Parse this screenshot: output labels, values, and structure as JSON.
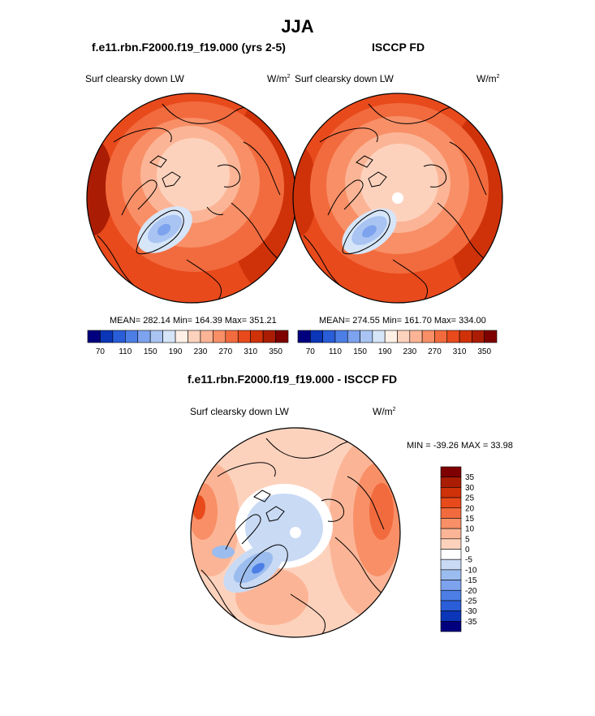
{
  "main_title": "JJA",
  "panels": [
    {
      "title": "f.e11.rbn.F2000.f19_f19.000 (yrs 2-5)",
      "left_label": "Surf clearsky down LW",
      "units": "W/m",
      "units_exp": "2",
      "stats": "MEAN= 282.14  Min= 164.39  Max= 351.21"
    },
    {
      "title": "ISCCP FD",
      "left_label": "Surf clearsky down LW",
      "units": "W/m",
      "units_exp": "2",
      "stats": "MEAN= 274.55  Min= 161.70  Max= 334.00"
    },
    {
      "title": "f.e11.rbn.F2000.f19_f19.000 - ISCCP FD",
      "left_label": "Surf clearsky down LW",
      "units": "W/m",
      "units_exp": "2",
      "stats": "MIN = -39.26 MAX =  33.98"
    }
  ],
  "colorbar_abs": {
    "tick_labels": [
      "70",
      "110",
      "150",
      "190",
      "230",
      "270",
      "310",
      "350"
    ],
    "colors": [
      "#00007f",
      "#0b36b8",
      "#2a5dd8",
      "#4c7ee6",
      "#7da2ee",
      "#a9c4f2",
      "#d6e5f8",
      "#fff0e6",
      "#fdd2bd",
      "#fbb596",
      "#f88f67",
      "#f26b3e",
      "#e84a1c",
      "#cf3209",
      "#aa1d04",
      "#7f0000"
    ]
  },
  "colorbar_diff": {
    "tick_labels": [
      "35",
      "30",
      "25",
      "20",
      "15",
      "10",
      "5",
      "0",
      "-5",
      "-10",
      "-15",
      "-20",
      "-25",
      "-30",
      "-35"
    ],
    "colors": [
      "#7f0000",
      "#aa1d04",
      "#cf3209",
      "#e84a1c",
      "#f26b3e",
      "#f88f67",
      "#fbb596",
      "#fdd2bd",
      "#ffffff",
      "#c9daf5",
      "#9bbcee",
      "#7da2ee",
      "#4c7ee6",
      "#2a5dd8",
      "#0b36b8",
      "#00007f"
    ]
  },
  "chart_data": [
    {
      "type": "heatmap",
      "title": "f.e11.rbn.F2000.f19_f19.000 (yrs 2-5)",
      "variable": "Surf clearsky down LW",
      "units": "W/m2",
      "projection": "north polar stereographic",
      "mean": 282.14,
      "min": 164.39,
      "max": 351.21,
      "colorbar_levels": [
        70,
        110,
        150,
        190,
        230,
        270,
        310,
        350
      ]
    },
    {
      "type": "heatmap",
      "title": "ISCCP FD",
      "variable": "Surf clearsky down LW",
      "units": "W/m2",
      "projection": "north polar stereographic",
      "mean": 274.55,
      "min": 161.7,
      "max": 334.0,
      "colorbar_levels": [
        70,
        110,
        150,
        190,
        230,
        270,
        310,
        350
      ]
    },
    {
      "type": "heatmap",
      "title": "f.e11.rbn.F2000.f19_f19.000 - ISCCP FD",
      "variable": "Surf clearsky down LW",
      "units": "W/m2",
      "projection": "north polar stereographic",
      "min": -39.26,
      "max": 33.98,
      "colorbar_levels": [
        35,
        30,
        25,
        20,
        15,
        10,
        5,
        0,
        -5,
        -10,
        -15,
        -20,
        -25,
        -30,
        -35
      ]
    }
  ]
}
